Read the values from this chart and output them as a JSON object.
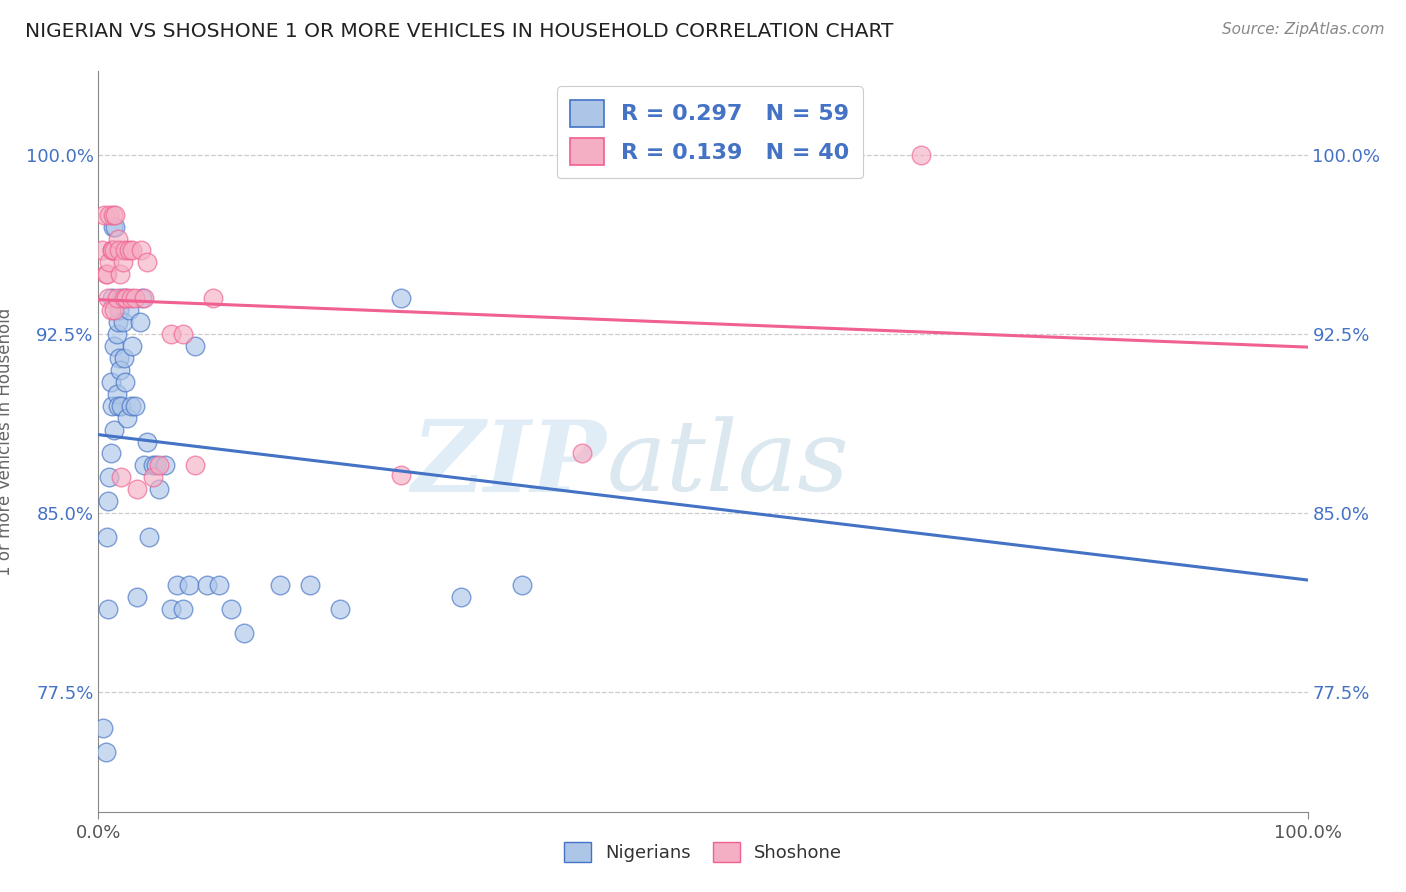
{
  "title": "NIGERIAN VS SHOSHONE 1 OR MORE VEHICLES IN HOUSEHOLD CORRELATION CHART",
  "source": "Source: ZipAtlas.com",
  "ylabel": "1 or more Vehicles in Household",
  "xlim": [
    0.0,
    1.0
  ],
  "ylim": [
    0.725,
    1.035
  ],
  "yticks": [
    0.775,
    0.85,
    0.925,
    1.0
  ],
  "ytick_labels": [
    "77.5%",
    "85.0%",
    "92.5%",
    "100.0%"
  ],
  "xtick_labels": [
    "0.0%",
    "100.0%"
  ],
  "nigerian_R": "0.297",
  "nigerian_N": "59",
  "shoshone_R": "0.139",
  "shoshone_N": "40",
  "nigerian_color": "#adc6e8",
  "shoshone_color": "#f5afc4",
  "nigerian_line_color": "#4472c4",
  "shoshone_line_color": "#f06090",
  "legend_text_color": "#4472c4",
  "nigerian_x": [
    0.004,
    0.006,
    0.007,
    0.008,
    0.008,
    0.009,
    0.01,
    0.01,
    0.011,
    0.011,
    0.012,
    0.012,
    0.013,
    0.013,
    0.014,
    0.015,
    0.015,
    0.016,
    0.016,
    0.017,
    0.017,
    0.018,
    0.019,
    0.019,
    0.02,
    0.021,
    0.022,
    0.023,
    0.024,
    0.025,
    0.027,
    0.028,
    0.03,
    0.032,
    0.034,
    0.036,
    0.038,
    0.04,
    0.042,
    0.045,
    0.048,
    0.05,
    0.055,
    0.06,
    0.065,
    0.07,
    0.075,
    0.08,
    0.09,
    0.1,
    0.11,
    0.12,
    0.15,
    0.175,
    0.2,
    0.25,
    0.3,
    0.35,
    0.48
  ],
  "nigerian_y": [
    0.76,
    0.75,
    0.84,
    0.81,
    0.855,
    0.865,
    0.875,
    0.905,
    0.895,
    0.94,
    0.96,
    0.97,
    0.885,
    0.92,
    0.97,
    0.9,
    0.925,
    0.895,
    0.93,
    0.915,
    0.935,
    0.91,
    0.895,
    0.94,
    0.93,
    0.915,
    0.905,
    0.94,
    0.89,
    0.935,
    0.895,
    0.92,
    0.895,
    0.815,
    0.93,
    0.94,
    0.87,
    0.88,
    0.84,
    0.87,
    0.87,
    0.86,
    0.87,
    0.81,
    0.82,
    0.81,
    0.82,
    0.92,
    0.82,
    0.82,
    0.81,
    0.8,
    0.82,
    0.82,
    0.81,
    0.94,
    0.815,
    0.82,
    1.0
  ],
  "shoshone_x": [
    0.003,
    0.005,
    0.006,
    0.007,
    0.008,
    0.009,
    0.009,
    0.01,
    0.011,
    0.011,
    0.012,
    0.013,
    0.013,
    0.014,
    0.015,
    0.016,
    0.017,
    0.018,
    0.019,
    0.02,
    0.021,
    0.022,
    0.023,
    0.025,
    0.027,
    0.028,
    0.03,
    0.032,
    0.035,
    0.038,
    0.04,
    0.045,
    0.05,
    0.06,
    0.07,
    0.08,
    0.095,
    0.25,
    0.4,
    0.68
  ],
  "shoshone_y": [
    0.96,
    0.975,
    0.95,
    0.95,
    0.94,
    0.955,
    0.975,
    0.935,
    0.96,
    0.96,
    0.975,
    0.935,
    0.96,
    0.975,
    0.94,
    0.965,
    0.96,
    0.95,
    0.865,
    0.955,
    0.94,
    0.96,
    0.94,
    0.96,
    0.94,
    0.96,
    0.94,
    0.86,
    0.96,
    0.94,
    0.955,
    0.865,
    0.87,
    0.925,
    0.925,
    0.87,
    0.94,
    0.866,
    0.875,
    1.0
  ],
  "background_color": "#ffffff",
  "watermark_zip": "#c5dff0",
  "watermark_atlas": "#b8d4e8"
}
